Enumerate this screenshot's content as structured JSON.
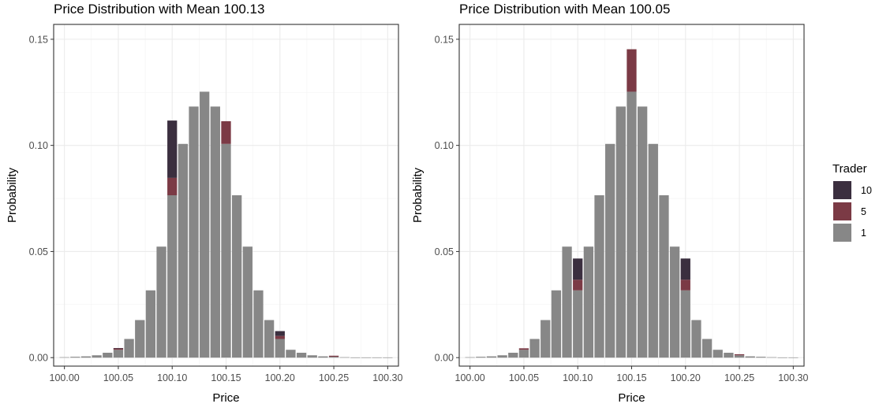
{
  "chart_data": [
    {
      "type": "bar",
      "stacked": true,
      "title": "Price Distribution with Mean 100.13",
      "xlabel": "Price",
      "ylabel": "Probability",
      "ylim": [
        -0.004,
        0.157
      ],
      "xlim": [
        99.99,
        100.31
      ],
      "xticks": [
        "100.00",
        "100.05",
        "100.10",
        "100.15",
        "100.20",
        "100.25",
        "100.30"
      ],
      "yticks": [
        "0.00",
        "0.05",
        "0.10",
        "0.15"
      ],
      "grid": true,
      "x": [
        100.0,
        100.01,
        100.02,
        100.03,
        100.04,
        100.05,
        100.06,
        100.07,
        100.08,
        100.09,
        100.1,
        100.11,
        100.12,
        100.13,
        100.14,
        100.15,
        100.16,
        100.17,
        100.18,
        100.19,
        100.2,
        100.21,
        100.22,
        100.23,
        100.24,
        100.25,
        100.26,
        100.27,
        100.28,
        100.29,
        100.3
      ],
      "series": [
        {
          "name": "1",
          "values": [
            0.0002,
            0.0004,
            0.0006,
            0.0011,
            0.0023,
            0.0037,
            0.0088,
            0.0177,
            0.0317,
            0.0523,
            0.0765,
            0.1007,
            0.1183,
            0.1253,
            0.1183,
            0.1007,
            0.0765,
            0.0523,
            0.0317,
            0.0177,
            0.0088,
            0.0037,
            0.0023,
            0.0011,
            0.0006,
            0.0004,
            0.0002,
            0.0001,
            0.0001,
            0.0001,
            0.0001
          ]
        },
        {
          "name": "5",
          "values": [
            0,
            0,
            0,
            0,
            0,
            0.0007,
            0,
            0,
            0,
            0,
            0.0082,
            0,
            0,
            0,
            0,
            0.0107,
            0,
            0,
            0,
            0,
            0.0014,
            0,
            0,
            0,
            0,
            0.0005,
            0,
            0,
            0,
            0,
            0
          ]
        },
        {
          "name": "10",
          "values": [
            0,
            0,
            0,
            0,
            0,
            0.0001,
            0,
            0,
            0,
            0,
            0.027,
            0,
            0,
            0,
            0,
            0,
            0,
            0,
            0,
            0,
            0.0023,
            0,
            0,
            0,
            0,
            0,
            0,
            0,
            0,
            0,
            0
          ]
        }
      ]
    },
    {
      "type": "bar",
      "stacked": true,
      "title": "Price Distribution with Mean 100.05",
      "xlabel": "Price",
      "ylabel": "Probability",
      "ylim": [
        -0.004,
        0.157
      ],
      "xlim": [
        99.99,
        100.31
      ],
      "xticks": [
        "100.00",
        "100.05",
        "100.10",
        "100.15",
        "100.20",
        "100.25",
        "100.30"
      ],
      "yticks": [
        "0.00",
        "0.05",
        "0.10",
        "0.15"
      ],
      "grid": true,
      "x": [
        100.0,
        100.01,
        100.02,
        100.03,
        100.04,
        100.05,
        100.06,
        100.07,
        100.08,
        100.09,
        100.1,
        100.11,
        100.12,
        100.13,
        100.14,
        100.15,
        100.16,
        100.17,
        100.18,
        100.19,
        100.2,
        100.21,
        100.22,
        100.23,
        100.24,
        100.25,
        100.26,
        100.27,
        100.28,
        100.29,
        100.3
      ],
      "series": [
        {
          "name": "1",
          "values": [
            0.0002,
            0.0004,
            0.0006,
            0.0011,
            0.0023,
            0.0037,
            0.0088,
            0.0177,
            0.0317,
            0.0523,
            0.0317,
            0.0523,
            0.0765,
            0.1007,
            0.1183,
            0.1253,
            0.1183,
            0.1007,
            0.0765,
            0.0523,
            0.0317,
            0.0177,
            0.0088,
            0.0037,
            0.0023,
            0.0011,
            0.0006,
            0.0004,
            0.0002,
            0.0001,
            0.0001
          ]
        },
        {
          "name": "5",
          "values": [
            0,
            0,
            0,
            0,
            0,
            0.0007,
            0,
            0,
            0,
            0,
            0.005,
            0,
            0,
            0,
            0,
            0.02,
            0,
            0,
            0,
            0,
            0.005,
            0,
            0,
            0,
            0,
            0.0005,
            0,
            0,
            0,
            0,
            0
          ]
        },
        {
          "name": "10",
          "values": [
            0,
            0,
            0,
            0,
            0,
            0,
            0,
            0,
            0,
            0,
            0.01,
            0,
            0,
            0,
            0,
            0,
            0,
            0,
            0,
            0,
            0.01,
            0,
            0,
            0,
            0,
            0,
            0,
            0,
            0,
            0,
            0
          ]
        }
      ]
    }
  ],
  "legend": {
    "title": "Trader",
    "placement": "right",
    "items": [
      {
        "label": "10",
        "color": "#3b2f3f"
      },
      {
        "label": "5",
        "color": "#7b3a45"
      },
      {
        "label": "1",
        "color": "#878787"
      }
    ]
  }
}
